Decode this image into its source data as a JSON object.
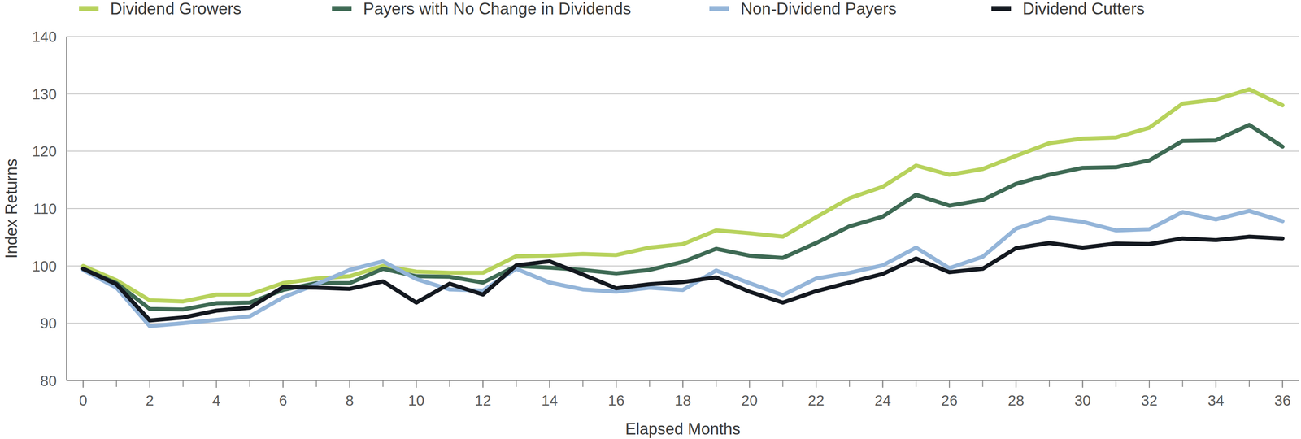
{
  "chart_data": {
    "type": "line",
    "x_label": "Elapsed Months",
    "y_label": "Index Returns",
    "x": [
      0,
      1,
      2,
      3,
      4,
      5,
      6,
      7,
      8,
      9,
      10,
      11,
      12,
      13,
      14,
      15,
      16,
      17,
      18,
      19,
      20,
      21,
      22,
      23,
      24,
      25,
      26,
      27,
      28,
      29,
      30,
      31,
      32,
      33,
      34,
      35,
      36
    ],
    "series": [
      {
        "name": "Dividend Growers",
        "color": "#b7d25c",
        "values": [
          100,
          97.5,
          94,
          93.8,
          95,
          95,
          97,
          97.8,
          98.2,
          100,
          99,
          98.8,
          98.8,
          101.7,
          101.8,
          102.1,
          101.9,
          103.2,
          103.8,
          106.2,
          105.7,
          105.1,
          108.5,
          111.8,
          113.8,
          117.5,
          115.9,
          116.9,
          119.2,
          121.4,
          122.2,
          122.4,
          124.1,
          128.3,
          129,
          130.8,
          128
        ]
      },
      {
        "name": "Payers with No Change in Dividends",
        "color": "#3e6a54",
        "values": [
          99.5,
          97,
          92.5,
          92.4,
          93.5,
          93.6,
          95.8,
          97,
          97,
          99.5,
          98.2,
          98.1,
          97.1,
          100,
          99.7,
          99.3,
          98.7,
          99.3,
          100.7,
          103,
          101.8,
          101.4,
          104,
          106.9,
          108.6,
          112.4,
          110.5,
          111.5,
          114.3,
          115.9,
          117.1,
          117.2,
          118.4,
          121.8,
          121.9,
          124.6,
          120.8
        ]
      },
      {
        "name": "Non-Dividend Payers",
        "color": "#94b5d9",
        "values": [
          99.3,
          96.2,
          89.5,
          90,
          90.6,
          91.2,
          94.5,
          96.8,
          99.3,
          100.8,
          97.7,
          95.9,
          95.7,
          99.5,
          97.1,
          95.9,
          95.5,
          96.2,
          95.8,
          99.2,
          97,
          94.9,
          97.8,
          98.8,
          100.1,
          103.2,
          99.6,
          101.6,
          106.5,
          108.4,
          107.7,
          106.2,
          106.4,
          109.4,
          108.1,
          109.6,
          107.8
        ]
      },
      {
        "name": "Dividend Cutters",
        "color": "#141920",
        "values": [
          99.5,
          96.8,
          90.5,
          91,
          92.2,
          92.7,
          96.3,
          96.2,
          96,
          97.3,
          93.6,
          96.9,
          95,
          100.1,
          100.8,
          98.5,
          96.1,
          96.8,
          97.2,
          98,
          95.5,
          93.6,
          95.6,
          97.1,
          98.6,
          101.3,
          98.9,
          99.5,
          103.1,
          104,
          103.2,
          103.9,
          103.8,
          104.8,
          104.5,
          105.1,
          104.8
        ]
      }
    ],
    "xlim": [
      -0.5,
      36.5
    ],
    "xticks": [
      0,
      2,
      4,
      6,
      8,
      10,
      12,
      14,
      16,
      18,
      20,
      22,
      24,
      26,
      28,
      30,
      32,
      34,
      36
    ],
    "ylim": [
      80,
      140
    ],
    "yticks": [
      80,
      90,
      100,
      110,
      120,
      130,
      140
    ],
    "grid": true,
    "legend": "top"
  }
}
